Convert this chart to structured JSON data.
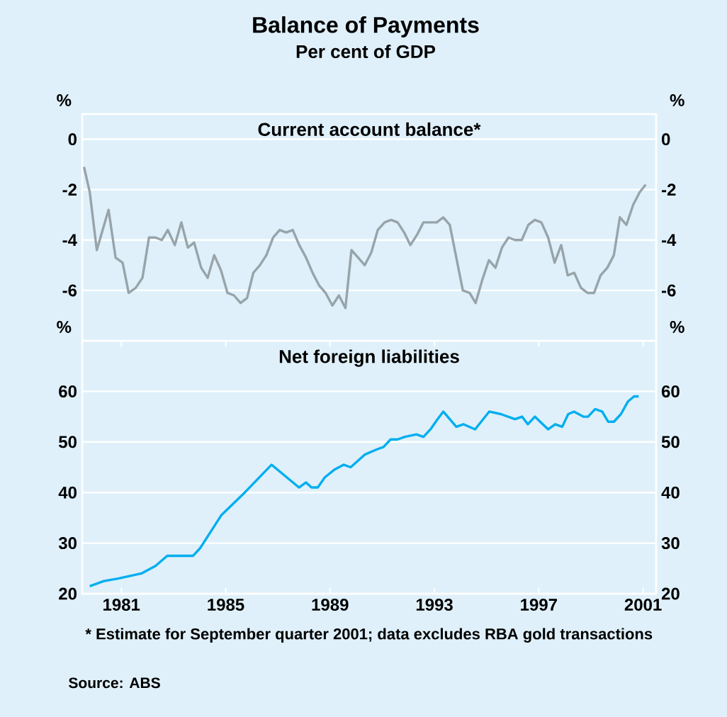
{
  "chart_data": [
    {
      "type": "line",
      "title": "Balance of Payments",
      "subtitle": "Per cent of GDP",
      "ylabel": "%",
      "y2label": "%",
      "x": [
        1980.07,
        1980.29,
        1980.56,
        1981.01,
        1981.28,
        1981.55,
        1981.78,
        1982.05,
        1982.31,
        1982.56,
        1982.81,
        1983.05,
        1983.28,
        1983.55,
        1983.8,
        1984.05,
        1984.29,
        1984.56,
        1984.81,
        1985.06,
        1985.32,
        1985.57,
        1985.82,
        1986.07,
        1986.32,
        1986.56,
        1986.81,
        1987.06,
        1987.32,
        1987.57,
        1987.82,
        1988.07,
        1988.32,
        1988.58,
        1988.83,
        1989.08,
        1989.33,
        1989.59,
        1989.84,
        1990.09,
        1990.32,
        1990.58,
        1990.83,
        1991.08,
        1991.33,
        1991.59,
        1991.84,
        1992.09,
        1992.34,
        1992.58,
        1992.83,
        1993.08,
        1993.33,
        1993.59,
        1993.84,
        1994.09,
        1994.34,
        1994.59,
        1994.85,
        1995.08,
        1995.33,
        1995.59,
        1995.84,
        1996.09,
        1996.34,
        1996.59,
        1996.85,
        1997.1,
        1997.35,
        1997.6,
        1997.86,
        1998.11,
        1998.36,
        1998.61,
        1998.86,
        1999.12,
        1999.37,
        1999.62,
        1999.87,
        2000.13,
        2000.38,
        2000.61,
        2000.86,
        2001.12,
        2001.37,
        2001.6
      ],
      "series": [
        {
          "name": "Current account balance*",
          "color": "#98a4aa",
          "values": [
            -1.1,
            -2.1,
            -4.4,
            -2.8,
            -4.7,
            -4.9,
            -6.1,
            -5.9,
            -5.5,
            -3.9,
            -3.9,
            -4.0,
            -3.6,
            -4.2,
            -3.3,
            -4.3,
            -4.1,
            -5.1,
            -5.5,
            -4.6,
            -5.2,
            -6.1,
            -6.2,
            -6.5,
            -6.3,
            -5.3,
            -5.0,
            -4.6,
            -3.9,
            -3.6,
            -3.7,
            -3.6,
            -4.2,
            -4.7,
            -5.3,
            -5.8,
            -6.1,
            -6.6,
            -6.2,
            -6.7,
            -4.4,
            -4.7,
            -5.0,
            -4.5,
            -3.6,
            -3.3,
            -3.2,
            -3.3,
            -3.7,
            -4.2,
            -3.8,
            -3.3,
            -3.3,
            -3.3,
            -3.1,
            -3.4,
            -4.7,
            -6.0,
            -6.1,
            -6.5,
            -5.6,
            -4.8,
            -5.1,
            -4.3,
            -3.9,
            -4.0,
            -4.0,
            -3.4,
            -3.2,
            -3.3,
            -3.9,
            -4.9,
            -4.2,
            -5.4,
            -5.3,
            -5.9,
            -6.1,
            -6.1,
            -5.4,
            -5.1,
            -4.6,
            -3.1,
            -3.4,
            -2.6,
            -2.1,
            -1.8
          ]
        }
      ],
      "xlim": [
        1980,
        2002
      ],
      "ylim": [
        -8,
        1
      ],
      "yticks": [
        0,
        -2,
        -4,
        -6
      ],
      "y2lim": [
        -8,
        1
      ],
      "y2ticks": [
        0,
        -2,
        -4,
        -6
      ],
      "tick_labels": "y",
      "grid": "y"
    },
    {
      "type": "line",
      "ylabel": "%",
      "y2label": "%",
      "x": [
        1980.29,
        1980.83,
        1981.37,
        1982.27,
        1982.81,
        1983.26,
        1984.25,
        1984.52,
        1985.33,
        1986.23,
        1987.26,
        1988.31,
        1988.58,
        1988.79,
        1989.03,
        1989.3,
        1989.66,
        1990.02,
        1990.29,
        1990.83,
        1991.28,
        1991.55,
        1991.82,
        1992.09,
        1992.36,
        1992.81,
        1993.08,
        1993.35,
        1993.62,
        1993.84,
        1994.34,
        1994.61,
        1995.06,
        1995.6,
        1996.05,
        1996.59,
        1996.86,
        1997.08,
        1997.35,
        1997.86,
        1998.13,
        1998.4,
        1998.63,
        1998.85,
        1999.21,
        1999.39,
        1999.66,
        1999.93,
        2000.16,
        2000.38,
        2000.65,
        2000.92,
        2001.15,
        2001.33
      ],
      "series": [
        {
          "name": "Net foreign liabilities",
          "color": "#00aeef",
          "values": [
            21.5,
            22.5,
            23,
            24,
            25.5,
            27.5,
            27.5,
            29,
            35.5,
            40,
            45.5,
            41,
            42,
            41,
            41,
            43,
            44.5,
            45.5,
            45,
            47.5,
            48.5,
            49,
            50.5,
            50.5,
            51,
            51.5,
            51,
            52.5,
            54.5,
            56,
            53,
            53.5,
            52.5,
            56,
            55.5,
            54.5,
            55,
            53.5,
            55,
            52.5,
            53.5,
            53,
            55.5,
            56,
            55,
            55,
            56.5,
            56,
            54,
            54,
            55.5,
            58,
            59,
            59
          ]
        }
      ],
      "xlim": [
        1980,
        2002
      ],
      "ylim": [
        20,
        70
      ],
      "yticks": [
        20,
        30,
        40,
        50,
        60
      ],
      "y2lim": [
        20,
        70
      ],
      "y2ticks": [
        20,
        30,
        40,
        50,
        60
      ],
      "xticks": [
        {
          "value": 1981.5,
          "label": "1981"
        },
        {
          "value": 1985.5,
          "label": "1985"
        },
        {
          "value": 1989.5,
          "label": "1989"
        },
        {
          "value": 1993.5,
          "label": "1993"
        },
        {
          "value": 1997.5,
          "label": "1997"
        },
        {
          "value": 2001.5,
          "label": "2001"
        }
      ],
      "grid": "y",
      "annotations": [
        "* Estimate for September quarter 2001; data excludes RBA gold transactions",
        "Source: ABS"
      ]
    }
  ]
}
